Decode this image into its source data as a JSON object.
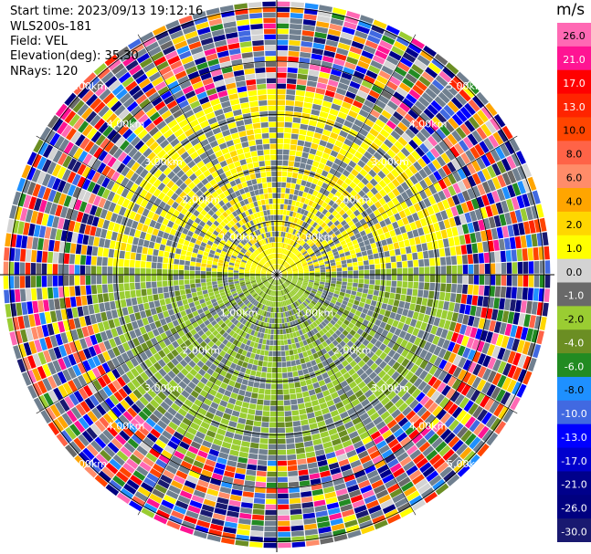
{
  "header": {
    "start_time": "Start time: 2023/09/13 19:12:16",
    "instrument": "WLS200s-181",
    "field": "Field: VEL",
    "elevation": "Elevation(deg): 35.30",
    "nrays": "NRays: 120"
  },
  "chart_data": {
    "type": "heatmap",
    "projection": "polar",
    "field": "VEL",
    "n_rays": 120,
    "elevation_deg": 35.3,
    "range_rings": [
      {
        "label": "1.00km",
        "range_km": 1.0
      },
      {
        "label": "2.00km",
        "range_km": 2.0
      },
      {
        "label": "3.00km",
        "range_km": 3.0
      },
      {
        "label": "4.00km",
        "range_km": 4.0
      },
      {
        "label": "5.00km",
        "range_km": 5.0
      }
    ],
    "max_range_km": 6.5,
    "near_field_pattern": "north sector (upper half) dominated by positive velocities 2-4 m/s (yellow), south sector by negative velocities -2 to -4 m/s (green), grey near-zero values throughout; noisy multicolor data beyond about 3.5 km",
    "colorbar": {
      "unit": "m/s",
      "tick_labels": [
        "26.0",
        "21.0",
        "17.0",
        "13.0",
        "10.0",
        "8.0",
        "6.0",
        "4.0",
        "2.0",
        "1.0",
        "0.0",
        "-1.0",
        "-2.0",
        "-4.0",
        "-6.0",
        "-8.0",
        "-10.0",
        "-13.0",
        "-17.0",
        "-21.0",
        "-26.0",
        "-30.0"
      ],
      "colors": [
        "#ff69b4",
        "#ff1493",
        "#ff0000",
        "#ff2400",
        "#ff4500",
        "#ff6347",
        "#ff8c69",
        "#ffa500",
        "#ffd700",
        "#ffff00",
        "#d3d3d3",
        "#696969",
        "#9acd32",
        "#6b8e23",
        "#228b22",
        "#1e90ff",
        "#4169e1",
        "#0000ff",
        "#0000cd",
        "#00008b",
        "#000080",
        "#191970"
      ]
    }
  }
}
